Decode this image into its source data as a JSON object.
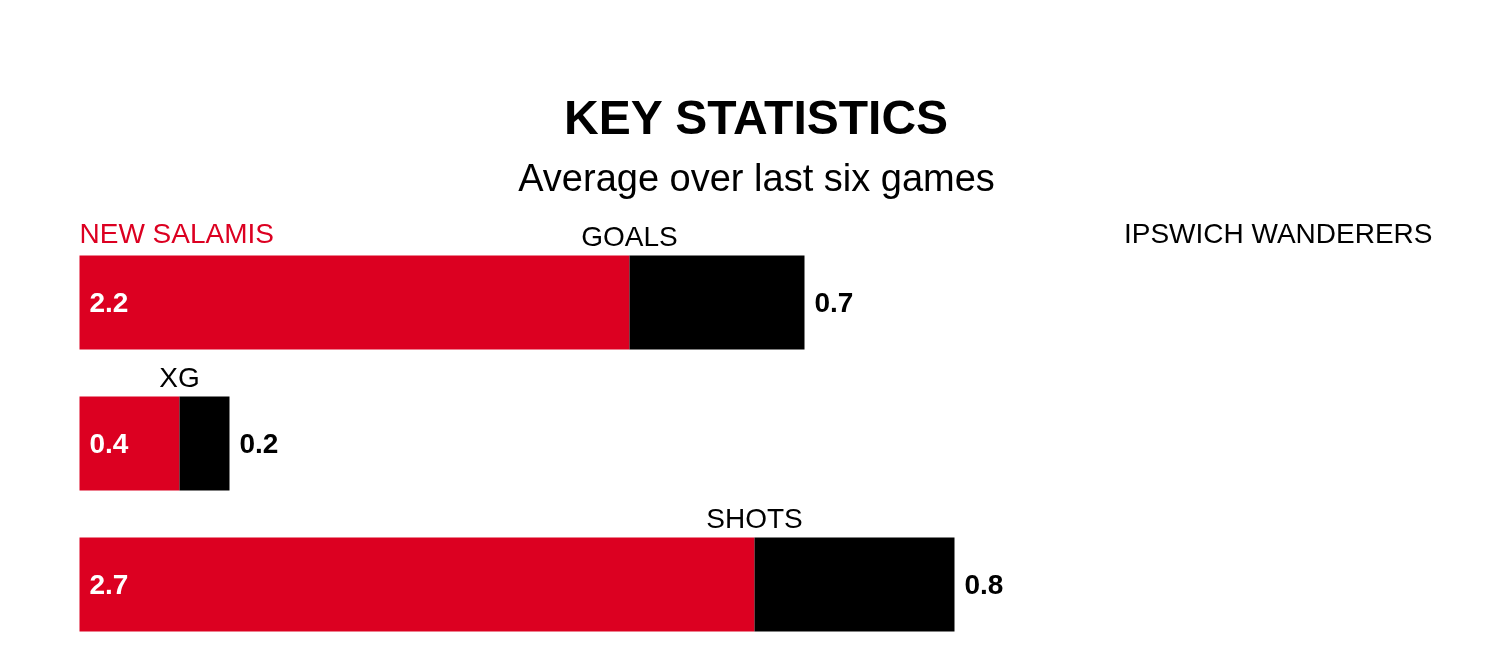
{
  "chart_data": {
    "type": "bar",
    "orientation": "horizontal",
    "stacked": true,
    "data_labels": true,
    "title": "KEY STATISTICS",
    "subtitle": "Average over last six games",
    "categories": [
      "GOALS",
      "XG",
      "SHOTS"
    ],
    "series": [
      {
        "name": "NEW SALAMIS",
        "color": "#dc0021",
        "values": [
          2.2,
          0.4,
          2.7
        ]
      },
      {
        "name": "IPSWICH WANDERERS",
        "color": "#000000",
        "values": [
          0.7,
          0.2,
          0.8
        ]
      }
    ]
  }
}
